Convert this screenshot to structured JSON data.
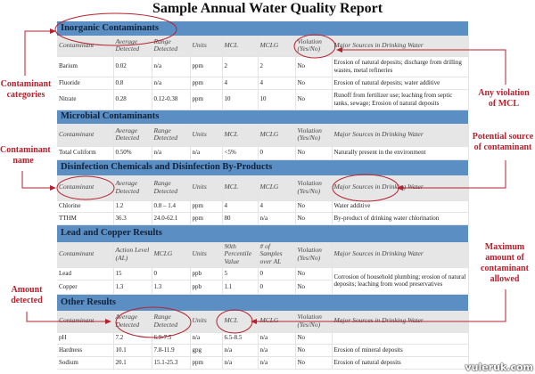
{
  "title": "Sample Annual Water Quality Report",
  "std_headers": [
    "Contaminant",
    "Average Detected",
    "Range Detected",
    "Units",
    "MCL",
    "MCLG",
    "Violation (Yes/No)",
    "Major Sources in Drinking Water"
  ],
  "lead_headers": [
    "Contaminant",
    "Action Level (AL)",
    "MCLG",
    "Units",
    "90th Percentile Value",
    "# of Samples over AL",
    "Violation (Yes/No)",
    "Major Sources in Drinking Water"
  ],
  "sections": {
    "inorganic": {
      "title": "Inorganic Contaminants",
      "rows": [
        [
          "Barium",
          "0.02",
          "n/a",
          "ppm",
          "2",
          "2",
          "No",
          "Erosion of natural deposits; discharge from drilling wastes, metal refineries"
        ],
        [
          "Fluoride",
          "0.8",
          "n/a",
          "ppm",
          "4",
          "4",
          "No",
          "Erosion of natural deposits; water additive"
        ],
        [
          "Nitrate",
          "0.28",
          "0.12-0.38",
          "ppm",
          "10",
          "10",
          "No",
          "Runoff from fertilizer use; leaching from septic tanks, sewage; Erosion of natural deposits"
        ]
      ]
    },
    "microbial": {
      "title": "Microbial Contaminants",
      "rows": [
        [
          "Total Coliform",
          "0.50%",
          "n/a",
          "n/a",
          "<5%",
          "0",
          "No",
          "Naturally present in the environment"
        ]
      ]
    },
    "disinfection": {
      "title": "Disinfection Chemicals and Disinfection By-Products",
      "rows": [
        [
          "Chlorine",
          "1.2",
          "0.8 – 1.4",
          "ppm",
          "4",
          "4",
          "No",
          "Water additive"
        ],
        [
          "TTHM",
          "36.3",
          "24.0-62.1",
          "ppm",
          "80",
          "n/a",
          "No",
          "By-product of drinking water chlorination"
        ]
      ]
    },
    "lead": {
      "title": "Lead and Copper Results",
      "rows": [
        [
          "Lead",
          "15",
          "0",
          "ppb",
          "5",
          "0",
          "No"
        ],
        [
          "Copper",
          "1.3",
          "1.3",
          "ppb",
          "1.1",
          "0",
          "No"
        ]
      ],
      "sources": "Corrosion of household plumbing; erosion of natural deposits; leaching from wood preservatives"
    },
    "other": {
      "title": "Other Results",
      "rows": [
        [
          "pH",
          "7.2",
          "6.9-7.5",
          "n/a",
          "6.5-8.5",
          "n/a",
          "No",
          ""
        ],
        [
          "Hardness",
          "10.1",
          "7.8-11.9",
          "gpg",
          "n/a",
          "n/a",
          "No",
          "Erosion of mineral deposits"
        ],
        [
          "Sodium",
          "20.1",
          "15.1-25.3",
          "ppm",
          "n/a",
          "n/a",
          "No",
          "Erosion of natural deposits"
        ]
      ]
    }
  },
  "annotations": {
    "categories": "Contaminant categories",
    "violation": "Any violation of MCL",
    "name": "Contaminant name",
    "source": "Potential source of contaminant",
    "mcl": "Maximum amount of contaminant allowed",
    "amount": "Amount detected"
  },
  "watermark": "vuleruk.com",
  "colors": {
    "section": "#5b8fc4",
    "annotation": "#b5222e"
  }
}
